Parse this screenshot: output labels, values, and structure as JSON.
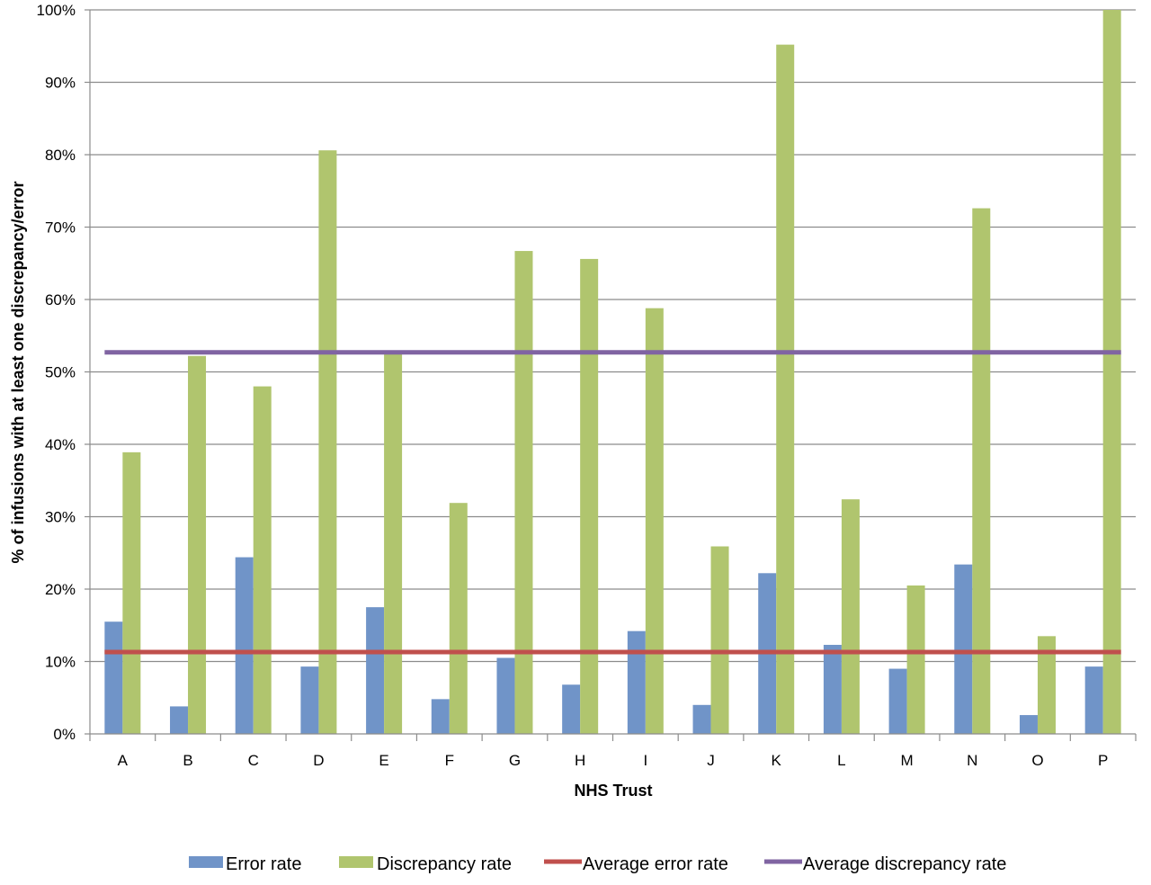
{
  "chart_data": {
    "type": "bar",
    "xlabel": "NHS Trust",
    "ylabel": "% of infusions with at least one discrepancy/error",
    "categories": [
      "A",
      "B",
      "C",
      "D",
      "E",
      "F",
      "G",
      "H",
      "I",
      "J",
      "K",
      "L",
      "M",
      "N",
      "O",
      "P"
    ],
    "y_ticks": [
      "0%",
      "10%",
      "20%",
      "30%",
      "40%",
      "50%",
      "60%",
      "70%",
      "80%",
      "90%",
      "100%"
    ],
    "ylim": [
      0,
      100
    ],
    "grid": "horizontal",
    "legend_position": "bottom",
    "series": [
      {
        "name": "Error rate",
        "kind": "bar",
        "color": "#7094c8",
        "values": [
          15.5,
          3.8,
          24.4,
          9.3,
          17.5,
          4.8,
          10.5,
          6.8,
          14.2,
          4.0,
          22.2,
          12.3,
          9.0,
          23.4,
          2.6,
          9.3
        ]
      },
      {
        "name": "Discrepancy rate",
        "kind": "bar",
        "color": "#b0c56e",
        "values": [
          38.9,
          52.2,
          48.0,
          80.6,
          52.5,
          31.9,
          66.7,
          65.6,
          58.8,
          25.9,
          95.2,
          32.4,
          20.5,
          72.6,
          13.5,
          100
        ]
      },
      {
        "name": "Average error rate",
        "kind": "line",
        "color": "#c0504d",
        "value": 11.3
      },
      {
        "name": "Average discrepancy rate",
        "kind": "line",
        "color": "#8064a2",
        "value": 52.7
      }
    ]
  }
}
